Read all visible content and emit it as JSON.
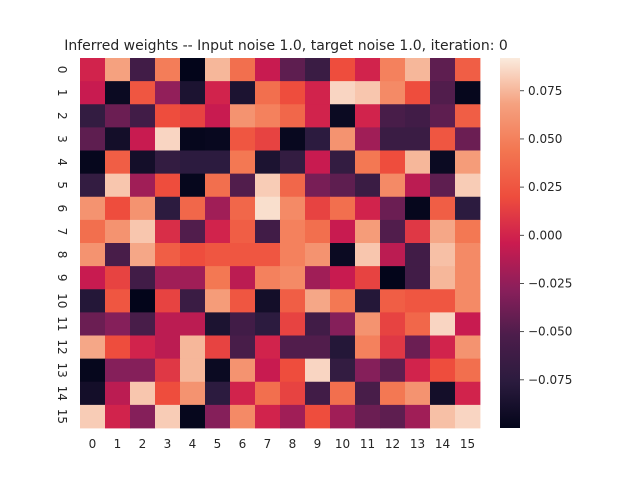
{
  "chart_data": {
    "type": "heatmap",
    "title": "Inferred weights -- Input noise 1.0, target noise 1.0, iteration: 0",
    "xlabel": "",
    "ylabel": "",
    "x_tick_labels": [
      "0",
      "1",
      "2",
      "3",
      "4",
      "5",
      "6",
      "7",
      "8",
      "9",
      "10",
      "11",
      "12",
      "13",
      "14",
      "15"
    ],
    "y_tick_labels": [
      "0",
      "1",
      "2",
      "3",
      "4",
      "5",
      "6",
      "7",
      "8",
      "9",
      "10",
      "11",
      "12",
      "13",
      "14",
      "15"
    ],
    "colormap": "rocket",
    "vmin": -0.1,
    "vmax": 0.092,
    "colorbar_ticks": [
      0.075,
      0.05,
      0.025,
      0.0,
      -0.025,
      -0.05,
      -0.075
    ],
    "colorbar_tick_labels": [
      "0.075",
      "0.050",
      "0.025",
      "0.000",
      "−0.025",
      "−0.050",
      "−0.075"
    ],
    "grid": false,
    "values": [
      [
        0.0,
        0.068,
        -0.06,
        0.048,
        -0.1,
        0.075,
        0.04,
        -0.005,
        -0.045,
        -0.065,
        0.02,
        0.0,
        0.05,
        0.075,
        -0.045,
        0.03
      ],
      [
        -0.005,
        -0.095,
        0.025,
        -0.025,
        -0.085,
        0.0,
        -0.085,
        0.04,
        0.02,
        0.0,
        0.085,
        0.08,
        0.055,
        0.02,
        -0.05,
        -0.098
      ],
      [
        -0.07,
        -0.04,
        -0.06,
        0.02,
        0.015,
        -0.005,
        0.06,
        0.05,
        0.035,
        0.0,
        -0.095,
        0.0,
        -0.055,
        -0.06,
        -0.045,
        0.03
      ],
      [
        -0.045,
        -0.09,
        -0.005,
        0.085,
        -0.098,
        -0.097,
        0.025,
        0.015,
        -0.097,
        -0.075,
        0.06,
        -0.02,
        -0.065,
        -0.065,
        0.025,
        -0.04
      ],
      [
        -0.098,
        0.03,
        -0.09,
        -0.07,
        -0.075,
        -0.075,
        0.045,
        -0.085,
        -0.07,
        -0.005,
        -0.07,
        0.045,
        0.02,
        0.075,
        -0.095,
        0.065
      ],
      [
        -0.07,
        0.08,
        -0.02,
        0.02,
        -0.098,
        0.04,
        -0.05,
        0.082,
        0.035,
        -0.035,
        -0.045,
        -0.065,
        0.055,
        -0.01,
        -0.045,
        0.082
      ],
      [
        0.06,
        0.02,
        0.06,
        -0.075,
        0.035,
        -0.02,
        0.035,
        0.088,
        0.055,
        0.015,
        0.04,
        0.0,
        -0.04,
        -0.098,
        0.03,
        -0.075
      ],
      [
        0.04,
        0.06,
        0.08,
        0.005,
        -0.05,
        0.0,
        0.03,
        -0.06,
        0.05,
        0.04,
        -0.005,
        0.065,
        -0.05,
        0.01,
        0.07,
        0.045
      ],
      [
        0.06,
        -0.055,
        0.07,
        0.03,
        0.02,
        0.025,
        0.025,
        0.025,
        0.05,
        0.06,
        -0.095,
        0.08,
        -0.01,
        -0.06,
        0.078,
        0.055
      ],
      [
        -0.005,
        0.015,
        -0.06,
        -0.02,
        -0.02,
        0.045,
        -0.01,
        0.05,
        0.055,
        -0.02,
        -0.005,
        0.015,
        -0.1,
        -0.06,
        0.075,
        0.055
      ],
      [
        -0.08,
        0.025,
        -0.1,
        0.015,
        -0.065,
        0.065,
        0.025,
        -0.09,
        0.03,
        0.07,
        0.045,
        -0.08,
        0.03,
        0.025,
        0.025,
        0.055
      ],
      [
        -0.04,
        -0.03,
        -0.055,
        -0.01,
        -0.01,
        -0.085,
        -0.06,
        -0.075,
        0.015,
        -0.06,
        -0.03,
        0.06,
        0.015,
        0.035,
        0.085,
        -0.005
      ],
      [
        0.07,
        0.02,
        0.0,
        -0.01,
        0.075,
        0.015,
        -0.055,
        0.0,
        -0.05,
        -0.05,
        -0.08,
        0.05,
        0.01,
        -0.04,
        0.0,
        0.06
      ],
      [
        -0.098,
        -0.03,
        -0.03,
        0.01,
        0.075,
        -0.095,
        0.06,
        -0.005,
        0.02,
        0.085,
        -0.07,
        -0.03,
        -0.045,
        0.0,
        0.02,
        0.04
      ],
      [
        -0.09,
        -0.01,
        0.08,
        0.02,
        0.06,
        -0.075,
        0.0,
        0.04,
        0.015,
        -0.06,
        0.04,
        -0.055,
        0.045,
        0.06,
        -0.09,
        0.0
      ],
      [
        0.082,
        0.0,
        -0.03,
        0.082,
        -0.098,
        -0.03,
        0.055,
        0.0,
        -0.02,
        0.02,
        -0.02,
        -0.04,
        -0.045,
        -0.02,
        0.078,
        0.085
      ]
    ]
  }
}
